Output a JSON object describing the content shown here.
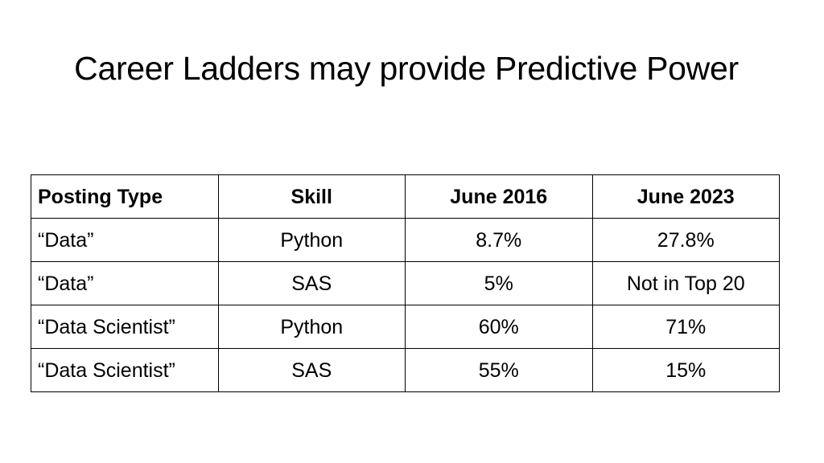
{
  "slide": {
    "title": "Career Ladders may provide Predictive Power"
  },
  "table": {
    "headers": [
      "Posting Type",
      "Skill",
      "June 2016",
      "June 2023"
    ],
    "rows": [
      [
        "“Data”",
        "Python",
        "8.7%",
        "27.8%"
      ],
      [
        "“Data”",
        "SAS",
        "5%",
        "Not in Top 20"
      ],
      [
        "“Data Scientist”",
        "Python",
        "60%",
        "71%"
      ],
      [
        "“Data Scientist”",
        "SAS",
        "55%",
        "15%"
      ]
    ]
  }
}
